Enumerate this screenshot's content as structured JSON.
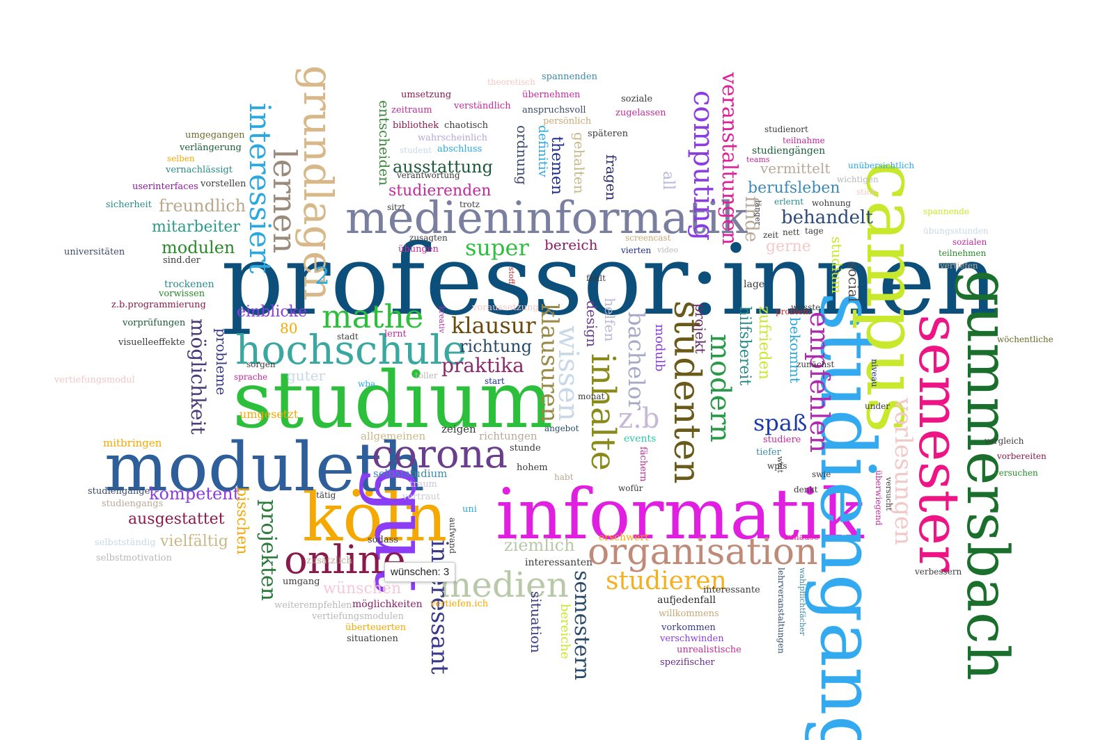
{
  "tooltip": {
    "word": "wünschen",
    "count": "3",
    "text": "wünschen: 3"
  },
  "words": [
    {
      "t": "professor:innen",
      "c": "#0b4f7a"
    },
    {
      "t": "studium",
      "c": "#2cbf3c"
    },
    {
      "t": "informatik",
      "c": "#e01fe0"
    },
    {
      "t": "köln",
      "c": "#f4a800"
    },
    {
      "t": "moduleth",
      "c": "#2e5f9a"
    },
    {
      "t": "gut",
      "c": "#8b3cf5"
    },
    {
      "t": "studiengang",
      "c": "#33aaf0"
    },
    {
      "t": "campus",
      "c": "#c8e82c"
    },
    {
      "t": "semester",
      "c": "#ee1486"
    },
    {
      "t": "gummersbach",
      "c": "#1a6f2c"
    },
    {
      "t": "medieninformatik",
      "c": "#7a7fa0"
    },
    {
      "t": "hochschule",
      "c": "#3aa8a0"
    },
    {
      "t": "corona",
      "c": "#6a3e8c"
    },
    {
      "t": "organisation",
      "c": "#c08a78"
    },
    {
      "t": "online",
      "c": "#8a1a4a"
    },
    {
      "t": "medien",
      "c": "#b8c8a8"
    },
    {
      "t": "mathe",
      "c": "#2cbf3c"
    },
    {
      "t": "grundlagen",
      "c": "#d8b888"
    },
    {
      "t": "lernen",
      "c": "#9a8a7a"
    },
    {
      "t": "interessiert",
      "c": "#2aa8e0"
    },
    {
      "t": "computing",
      "c": "#8a3ce0"
    },
    {
      "t": "veranstaltungen",
      "c": "#e0209a"
    },
    {
      "t": "studenten",
      "c": "#6a5a1a"
    },
    {
      "t": "inhalte",
      "c": "#8a8a1a"
    },
    {
      "t": "modern",
      "c": "#2a9a4a"
    },
    {
      "t": "empfehlen",
      "c": "#b02ab0"
    },
    {
      "t": "wissen",
      "c": "#c8d8e8"
    },
    {
      "t": "klausuren",
      "c": "#9a8a4a"
    },
    {
      "t": "bachelor",
      "c": "#a8a8c8"
    },
    {
      "t": "vorlesungen",
      "c": "#f4c8c8"
    },
    {
      "t": "studieren",
      "c": "#f4b020"
    },
    {
      "t": "semestern",
      "c": "#2a4a6a"
    },
    {
      "t": "interessant",
      "c": "#3a3a8a"
    },
    {
      "t": "klausur",
      "c": "#6a4a0a"
    },
    {
      "t": "praktika",
      "c": "#8a2a6a"
    },
    {
      "t": "richtung",
      "c": "#2a4a6a"
    },
    {
      "t": "projekten",
      "c": "#2a7a3a"
    },
    {
      "t": "möglichkeit",
      "c": "#4a3a7a"
    },
    {
      "t": "super",
      "c": "#2cbf3c"
    },
    {
      "t": "spaß",
      "c": "#1a3aa8"
    },
    {
      "t": "z.b",
      "c": "#c8b8d8"
    },
    {
      "t": "berufsleben",
      "c": "#3a8ab8"
    },
    {
      "t": "behandelt",
      "c": "#2a4a7a"
    },
    {
      "t": "modulen",
      "c": "#2a8a2a"
    },
    {
      "t": "mitarbeiter",
      "c": "#2a9a8a"
    },
    {
      "t": "freundlich",
      "c": "#b8a88a"
    },
    {
      "t": "ausstattung",
      "c": "#1a5a3a"
    },
    {
      "t": "studierenden",
      "c": "#c02a9a"
    },
    {
      "t": "kompetent",
      "c": "#8a3ce0"
    },
    {
      "t": "ausgestattet",
      "c": "#8a1a4a"
    },
    {
      "t": "vielfältig",
      "c": "#c8b888"
    },
    {
      "t": "bisschen",
      "c": "#f4a800"
    },
    {
      "t": "einblicke",
      "c": "#8a3ce0"
    },
    {
      "t": "probleme",
      "c": "#3a3a8a"
    },
    {
      "t": "design",
      "c": "#6a3e8c"
    },
    {
      "t": "helfen",
      "c": "#b8b8d8"
    },
    {
      "t": "themen",
      "c": "#1a2a8a"
    },
    {
      "t": "ordnung",
      "c": "#3a4a6a"
    },
    {
      "t": "entscheiden",
      "c": "#3a8a3a"
    },
    {
      "t": "definitiv",
      "c": "#2aa8e0"
    },
    {
      "t": "gehalten",
      "c": "#c8b888"
    },
    {
      "t": "fragen",
      "c": "#2a2a6a"
    },
    {
      "t": "all",
      "c": "#b8b8d8"
    },
    {
      "t": "finde",
      "c": "#b8a898"
    },
    {
      "t": "gerne",
      "c": "#f4c8c8"
    },
    {
      "t": "bereich",
      "c": "#8a1a6a"
    },
    {
      "t": "vermittelt",
      "c": "#b8a898"
    },
    {
      "t": "studium",
      "c": "#c8e82c"
    },
    {
      "t": "social",
      "c": "#4a4a4a"
    },
    {
      "t": "hilfsbereit",
      "c": "#2a8a8a"
    },
    {
      "t": "zufrieden",
      "c": "#c8e82c"
    },
    {
      "t": "bekommt",
      "c": "#2aa8e0"
    },
    {
      "t": "projekt",
      "c": "#6a2a6a"
    },
    {
      "t": "modulb",
      "c": "#8a3ce0"
    },
    {
      "t": "situation",
      "c": "#3a3a8a"
    },
    {
      "t": "bereiche",
      "c": "#c8e82c"
    },
    {
      "t": "ziemlich",
      "c": "#b8c8a8"
    },
    {
      "t": "wünschen",
      "c": "#f4c8d8"
    },
    {
      "t": "guter",
      "c": "#c8d8e8"
    },
    {
      "t": "80",
      "c": "#f4a800"
    },
    {
      "t": "2",
      "c": "#2aa8e0"
    },
    {
      "t": "umgesetzt",
      "c": "#f4a800"
    },
    {
      "t": "mitbringen",
      "c": "#f4a800"
    },
    {
      "t": "allgemeinen",
      "c": "#c8b888"
    },
    {
      "t": "zeigen",
      "c": "#3a3a3a"
    },
    {
      "t": "richtungen",
      "c": "#b8a898"
    },
    {
      "t": "selbststudium",
      "c": "#3a8aa8"
    },
    {
      "t": "events",
      "c": "#2ac8a8"
    },
    {
      "t": "fächern",
      "c": "#c02a9a"
    },
    {
      "t": "erschwert",
      "c": "#f4a800"
    },
    {
      "t": "interessanten",
      "c": "#3a3a3a"
    },
    {
      "t": "aufjedenfall",
      "c": "#2a2a2a"
    },
    {
      "t": "willkommens",
      "c": "#c8a878"
    },
    {
      "t": "vorkommen",
      "c": "#3a3a8a"
    },
    {
      "t": "verschwinden",
      "c": "#8a3ce0"
    },
    {
      "t": "unrealistische",
      "c": "#c02a9a"
    },
    {
      "t": "spezifischer",
      "c": "#6a2a8a"
    },
    {
      "t": "interessante",
      "c": "#3a3a3a"
    },
    {
      "t": "lehrveranstaltungen",
      "c": "#2a4a6a"
    },
    {
      "t": "wahlpflichtfächer",
      "c": "#3a8aa8"
    },
    {
      "t": "überwiegend",
      "c": "#c02a9a"
    },
    {
      "t": "zuhause",
      "c": "#e0209a"
    },
    {
      "t": "denkt",
      "c": "#3a3a3a"
    },
    {
      "t": "swie",
      "c": "#3a3a3a"
    },
    {
      "t": "studiere",
      "c": "#c02a9a"
    },
    {
      "t": "tiefer",
      "c": "#3a8aa8"
    },
    {
      "t": "wpfs",
      "c": "#3a3a3a"
    },
    {
      "t": "weit",
      "c": "#3a3a3a"
    },
    {
      "t": "zunächst",
      "c": "#3a3a3a"
    },
    {
      "t": "problem",
      "c": "#c02a2a"
    },
    {
      "t": "wusste",
      "c": "#3a3a3a"
    },
    {
      "t": "lage",
      "c": "#3a3a3a"
    },
    {
      "t": "niveau",
      "c": "#1a2a8a"
    },
    {
      "t": "under",
      "c": "#3a3a3a"
    },
    {
      "t": "versucht",
      "c": "#3a3a3a"
    },
    {
      "t": "verbessern",
      "c": "#3a3a3a"
    },
    {
      "t": "vergleich",
      "c": "#3a3a3a"
    },
    {
      "t": "vorbereiten",
      "c": "#8a1a4a"
    },
    {
      "t": "versuchen",
      "c": "#2a8a2a"
    },
    {
      "t": "wöchentliche",
      "c": "#6a6a2a"
    },
    {
      "t": "vertiefen",
      "c": "#b8a898"
    },
    {
      "t": "teilnehmen",
      "c": "#2a8a2a"
    },
    {
      "t": "sozialen",
      "c": "#c02a9a"
    },
    {
      "t": "übungsstunden",
      "c": "#c8d8e8"
    },
    {
      "t": "spannende",
      "c": "#c8e82c"
    },
    {
      "t": "unübersichtlich",
      "c": "#2aa8e0"
    },
    {
      "t": "wichtigen",
      "c": "#b8b8b8"
    },
    {
      "t": "stich",
      "c": "#f4c8c8"
    },
    {
      "t": "wohnung",
      "c": "#3a3a3a"
    },
    {
      "t": "erlernt",
      "c": "#2a8a8a"
    },
    {
      "t": "länger",
      "c": "#3a3a3a"
    },
    {
      "t": "nett",
      "c": "#3a3a3a"
    },
    {
      "t": "tage",
      "c": "#3a3a3a"
    },
    {
      "t": "zeit",
      "c": "#3a3a3a"
    },
    {
      "t": "studiengängen",
      "c": "#1a5a3a"
    },
    {
      "t": "teams",
      "c": "#c02a9a"
    },
    {
      "t": "teilnahme",
      "c": "#c02a9a"
    },
    {
      "t": "studienort",
      "c": "#3a3a3a"
    },
    {
      "t": "umgegangen",
      "c": "#6a6a2a"
    },
    {
      "t": "verlängerung",
      "c": "#1a5a3a"
    },
    {
      "t": "selben",
      "c": "#f4a800"
    },
    {
      "t": "vernachlässigt",
      "c": "#2a8a8a"
    },
    {
      "t": "userinterfaces",
      "c": "#8a1a9a"
    },
    {
      "t": "vorstellen",
      "c": "#3a3a3a"
    },
    {
      "t": "sicherheit",
      "c": "#2a8a8a"
    },
    {
      "t": "universitäten",
      "c": "#3a4a6a"
    },
    {
      "t": "sind.der",
      "c": "#3a3a3a"
    },
    {
      "t": "trockenen",
      "c": "#2a8a8a"
    },
    {
      "t": "vorwissen",
      "c": "#2a8a2a"
    },
    {
      "t": "z.b.programmierung",
      "c": "#8a1a4a"
    },
    {
      "t": "vorprüfungen",
      "c": "#1a5a3a"
    },
    {
      "t": "visuelleeffekte",
      "c": "#3a3a3a"
    },
    {
      "t": "sorgen",
      "c": "#3a3a3a"
    },
    {
      "t": "sprache",
      "c": "#c02a9a"
    },
    {
      "t": "vertiefungsmodul",
      "c": "#f4c8c8"
    },
    {
      "t": "studiengänge",
      "c": "#3a4a6a"
    },
    {
      "t": "studiengangs",
      "c": "#b8a898"
    },
    {
      "t": "selbstständig",
      "c": "#c8d8e8"
    },
    {
      "t": "selbstmotivation",
      "c": "#b8b8b8"
    },
    {
      "t": "umgang",
      "c": "#3a3a3a"
    },
    {
      "t": "zusätzlich",
      "c": "#b8a898"
    },
    {
      "t": "sodass",
      "c": "#3a3a3a"
    },
    {
      "t": "weiterempfehlen",
      "c": "#b8b8b8"
    },
    {
      "t": "vertiefungsmodulen",
      "c": "#b8b8b8"
    },
    {
      "t": "möglichkeiten",
      "c": "#8a1a6a"
    },
    {
      "t": "überteuerten",
      "c": "#f4a800"
    },
    {
      "t": "situationen",
      "c": "#3a3a3a"
    },
    {
      "t": "vertiefen.ich",
      "c": "#f4a800"
    },
    {
      "t": "tätig",
      "c": "#3a3a3a"
    },
    {
      "t": "traum",
      "c": "#c8c8d8"
    },
    {
      "t": "vertraut",
      "c": "#c8c8d8"
    },
    {
      "t": "uni",
      "c": "#2aa8e0"
    },
    {
      "t": "aufwand",
      "c": "#3a3a3a"
    },
    {
      "t": "hohem",
      "c": "#3a3a3a"
    },
    {
      "t": "habt",
      "c": "#b8a898"
    },
    {
      "t": "stunde",
      "c": "#3a3a3a"
    },
    {
      "t": "angebot",
      "c": "#2a4a6a"
    },
    {
      "t": "monat",
      "c": "#3a3a3a"
    },
    {
      "t": "wofür",
      "c": "#3a3a3a"
    },
    {
      "t": "screencast",
      "c": "#c8a878"
    },
    {
      "t": "vierten",
      "c": "#1a2a8a"
    },
    {
      "t": "video",
      "c": "#b8b8b8"
    },
    {
      "t": "fehlt",
      "c": "#3a3a3a"
    },
    {
      "t": "stoff",
      "c": "#c02a2a"
    },
    {
      "t": "voraussetzung",
      "c": "#f4c8c8"
    },
    {
      "t": "kreativ",
      "c": "#b02ab0"
    },
    {
      "t": "lernt",
      "c": "#c02a9a"
    },
    {
      "t": "stadt",
      "c": "#3a3a3a"
    },
    {
      "t": "toller",
      "c": "#b8b8b8"
    },
    {
      "t": "start",
      "c": "#1a2a8a"
    },
    {
      "t": "wba",
      "c": "#2aa8e0"
    },
    {
      "t": "zusagten",
      "c": "#3a3a3a"
    },
    {
      "t": "übungen",
      "c": "#c02a9a"
    },
    {
      "t": "sitzt",
      "c": "#3a3a3a"
    },
    {
      "t": "trotz",
      "c": "#3a3a3a"
    },
    {
      "t": "umsetzung",
      "c": "#8a1a4a"
    },
    {
      "t": "verständlich",
      "c": "#c02a9a"
    },
    {
      "t": "zeitraum",
      "c": "#c02a9a"
    },
    {
      "t": "bibliothek",
      "c": "#8a1a4a"
    },
    {
      "t": "chaotisch",
      "c": "#3a3a3a"
    },
    {
      "t": "wahrscheinlich",
      "c": "#b8a8d8"
    },
    {
      "t": "student",
      "c": "#c8d8e8"
    },
    {
      "t": "abschluss",
      "c": "#2aa8e0"
    },
    {
      "t": "verantwortung",
      "c": "#3a3a3a"
    },
    {
      "t": "anspruchsvoll",
      "c": "#3a4a6a"
    },
    {
      "t": "persönlich",
      "c": "#c8a878"
    },
    {
      "t": "übernehmen",
      "c": "#c02a9a"
    },
    {
      "t": "spannenden",
      "c": "#3a8aa8"
    },
    {
      "t": "theoretisch",
      "c": "#f4c8c8"
    },
    {
      "t": "soziale",
      "c": "#3a3a3a"
    },
    {
      "t": "zugelassen",
      "c": "#c02a9a"
    },
    {
      "t": "späteren",
      "c": "#3a3a3a"
    }
  ]
}
